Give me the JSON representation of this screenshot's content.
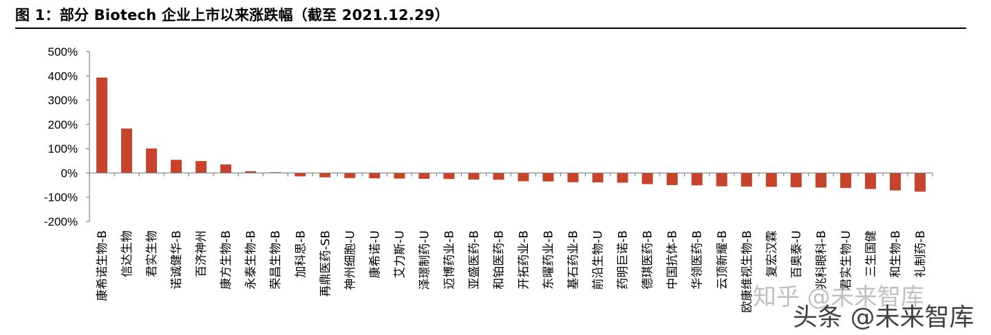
{
  "title": "图 1：部分 Biotech 企业上市以来涨跌幅（截至 2021.12.29）",
  "watermark_primary": "知乎 @未来智库",
  "watermark_secondary": "头条 @未来智库",
  "colors": {
    "bar": "#c8432b",
    "axis": "#7f7f7f",
    "text": "#000000"
  },
  "chart_data": {
    "type": "bar",
    "title": "图 1：部分 Biotech 企业上市以来涨跌幅（截至 2021.12.29）",
    "xlabel": "",
    "ylabel": "",
    "ylim": [
      -200,
      500
    ],
    "yticks": [
      500,
      400,
      300,
      200,
      100,
      0,
      -100,
      -200
    ],
    "ytick_labels": [
      "500%",
      "400%",
      "300%",
      "200%",
      "100%",
      "0%",
      "-100%",
      "-200%"
    ],
    "grid": false,
    "legend": "none",
    "categories": [
      "康希诺生物-B",
      "信达生物",
      "君实生物",
      "诺诚健华-B",
      "百济神州",
      "康方生物-B",
      "永泰生物-B",
      "荣昌生物-B",
      "加科思-B",
      "再鼎医药-SB",
      "神州细胞-U",
      "康希诺-U",
      "艾力斯-U",
      "泽璟制药-U",
      "迈博药业-B",
      "亚盛医药-B",
      "和铂医药-B",
      "开拓药业-B",
      "东曜药业-B",
      "基石药业-B",
      "前沿生物-U",
      "药明巨诺-B",
      "德琪医药-B",
      "中国抗体-B",
      "华领医药-B",
      "云顶新耀-B",
      "欧康维视生物-B",
      "复宏汉霖",
      "百奥泰-U",
      "兆科眼科-B",
      "君实生物-U",
      "三生国健",
      "和生物-B",
      "礼制药-B"
    ],
    "values": [
      393,
      183,
      101,
      54,
      49,
      35,
      7,
      3,
      -14,
      -18,
      -21,
      -22,
      -23,
      -24,
      -25,
      -27,
      -28,
      -34,
      -35,
      -38,
      -39,
      -40,
      -46,
      -50,
      -51,
      -55,
      -56,
      -57,
      -59,
      -60,
      -62,
      -66,
      -72,
      -77
    ]
  }
}
